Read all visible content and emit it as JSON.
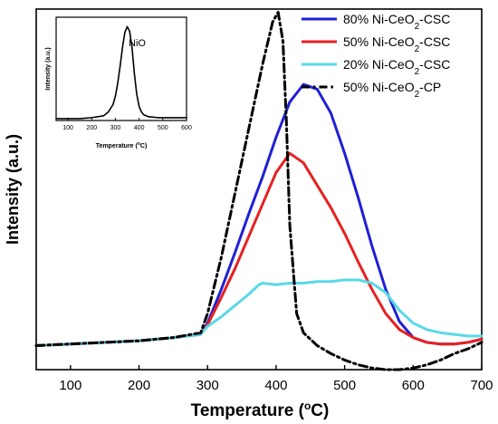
{
  "chart_data": [
    {
      "type": "line",
      "xlabel": "Temperature (°C)",
      "ylabel": "Intensity (a.u.)",
      "xlim": [
        50,
        700
      ],
      "ylim": [
        -0.15,
        2.1
      ],
      "xticks": [
        100,
        200,
        300,
        400,
        500,
        600,
        700
      ],
      "yticks_shown": false,
      "grid": false,
      "legend_position": "top-right",
      "series": [
        {
          "name": "80% Ni-CeO2-CSC",
          "name_base": "80% Ni-CeO",
          "name_sub": "2",
          "name_tail": "-CSC",
          "color": "#1f1fd6",
          "dash": "solid",
          "x": [
            50,
            100,
            150,
            200,
            250,
            290,
            300,
            320,
            340,
            360,
            380,
            400,
            420,
            440,
            460,
            480,
            500,
            520,
            540,
            560,
            580,
            600,
            620,
            640,
            660,
            680,
            700
          ],
          "y": [
            0.0,
            0.01,
            0.02,
            0.03,
            0.05,
            0.07,
            0.14,
            0.35,
            0.58,
            0.82,
            1.05,
            1.3,
            1.52,
            1.63,
            1.6,
            1.45,
            1.2,
            0.92,
            0.62,
            0.35,
            0.15,
            0.05,
            0.02,
            0.01,
            0.01,
            0.02,
            0.04
          ]
        },
        {
          "name": "50% Ni-CeO2-CSC",
          "name_base": "50% Ni-CeO",
          "name_sub": "2",
          "name_tail": "-CSC",
          "color": "#e62020",
          "dash": "solid",
          "x": [
            50,
            100,
            150,
            200,
            250,
            290,
            300,
            320,
            340,
            360,
            380,
            400,
            420,
            440,
            460,
            480,
            500,
            520,
            540,
            560,
            580,
            600,
            620,
            640,
            660,
            680,
            700
          ],
          "y": [
            0.0,
            0.01,
            0.02,
            0.03,
            0.05,
            0.07,
            0.13,
            0.3,
            0.48,
            0.68,
            0.88,
            1.08,
            1.2,
            1.14,
            1.0,
            0.86,
            0.7,
            0.52,
            0.35,
            0.2,
            0.1,
            0.05,
            0.02,
            0.01,
            0.01,
            0.02,
            0.04
          ]
        },
        {
          "name": "20% Ni-CeO2-CSC",
          "name_base": "20% Ni-CeO",
          "name_sub": "2",
          "name_tail": "-CSC",
          "color": "#5ad8e8",
          "dash": "solid",
          "x": [
            50,
            100,
            150,
            200,
            250,
            290,
            300,
            320,
            340,
            360,
            375,
            380,
            400,
            420,
            440,
            460,
            480,
            500,
            520,
            540,
            560,
            580,
            600,
            620,
            640,
            660,
            680,
            700
          ],
          "y": [
            0.0,
            0.01,
            0.02,
            0.03,
            0.05,
            0.07,
            0.12,
            0.18,
            0.25,
            0.32,
            0.38,
            0.39,
            0.38,
            0.39,
            0.39,
            0.4,
            0.4,
            0.41,
            0.41,
            0.39,
            0.33,
            0.22,
            0.14,
            0.1,
            0.08,
            0.07,
            0.06,
            0.06
          ]
        },
        {
          "name": "50% Ni-CeO2-CP",
          "name_base": "50% Ni-CeO",
          "name_sub": "2",
          "name_tail": "-CP",
          "color": "#000000",
          "dash": "dashdot",
          "x": [
            50,
            100,
            150,
            200,
            250,
            290,
            300,
            320,
            340,
            360,
            380,
            395,
            403,
            410,
            415,
            420,
            430,
            440,
            460,
            480,
            500,
            520,
            540,
            560,
            580,
            600,
            620,
            640,
            660,
            680,
            700
          ],
          "y": [
            0.0,
            0.01,
            0.02,
            0.03,
            0.05,
            0.08,
            0.2,
            0.55,
            0.95,
            1.35,
            1.75,
            2.02,
            2.08,
            1.9,
            1.4,
            0.75,
            0.2,
            0.08,
            0.0,
            -0.05,
            -0.09,
            -0.12,
            -0.14,
            -0.15,
            -0.15,
            -0.14,
            -0.12,
            -0.09,
            -0.05,
            -0.02,
            0.02
          ]
        }
      ]
    },
    {
      "type": "line",
      "annotation": "NiO",
      "xlabel": "Temperature (°C)",
      "ylabel": "Intensity (a.u.)",
      "xlim": [
        50,
        600
      ],
      "ylim": [
        0,
        1.1
      ],
      "xticks": [
        100,
        200,
        300,
        400,
        500,
        600
      ],
      "series": [
        {
          "color": "#000000",
          "x": [
            50,
            100,
            150,
            200,
            250,
            270,
            290,
            300,
            310,
            320,
            330,
            340,
            350,
            360,
            370,
            380,
            390,
            400,
            410,
            420,
            440,
            480,
            520,
            560,
            600
          ],
          "y": [
            0.02,
            0.02,
            0.02,
            0.03,
            0.05,
            0.09,
            0.17,
            0.26,
            0.4,
            0.58,
            0.78,
            0.94,
            1.0,
            0.95,
            0.78,
            0.5,
            0.28,
            0.15,
            0.09,
            0.06,
            0.04,
            0.03,
            0.03,
            0.03,
            0.03
          ]
        }
      ]
    }
  ]
}
